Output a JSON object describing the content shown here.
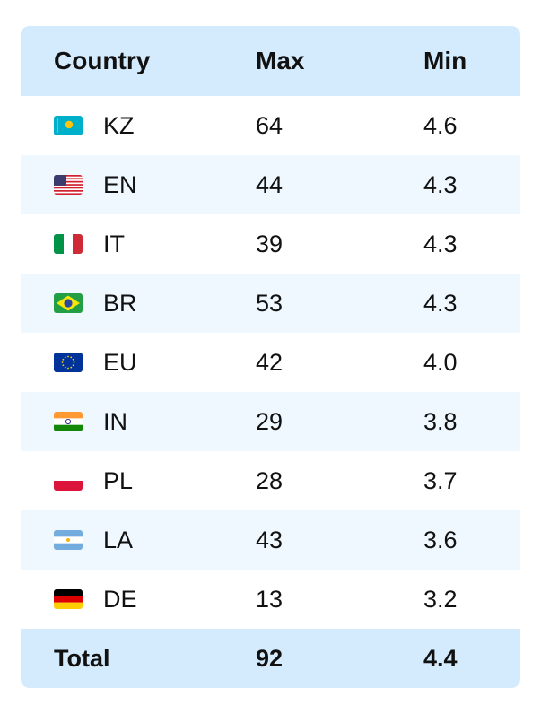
{
  "chart_data": {
    "type": "table",
    "columns": [
      "Country",
      "Max",
      "Min"
    ],
    "rows": [
      {
        "country": "KZ",
        "flag": "kazakhstan-flag-icon",
        "max": "64",
        "min": "4.6"
      },
      {
        "country": "EN",
        "flag": "usa-flag-icon",
        "max": "44",
        "min": "4.3"
      },
      {
        "country": "IT",
        "flag": "italy-flag-icon",
        "max": "39",
        "min": "4.3"
      },
      {
        "country": "BR",
        "flag": "brazil-flag-icon",
        "max": "53",
        "min": "4.3"
      },
      {
        "country": "EU",
        "flag": "eu-flag-icon",
        "max": "42",
        "min": "4.0"
      },
      {
        "country": "IN",
        "flag": "india-flag-icon",
        "max": "29",
        "min": "3.8"
      },
      {
        "country": "PL",
        "flag": "poland-flag-icon",
        "max": "28",
        "min": "3.7"
      },
      {
        "country": "LA",
        "flag": "argentina-flag-icon",
        "max": "43",
        "min": "3.6"
      },
      {
        "country": "DE",
        "flag": "germany-flag-icon",
        "max": "13",
        "min": "3.2"
      }
    ],
    "total": {
      "label": "Total",
      "max": "92",
      "min": "4.4"
    }
  },
  "colors": {
    "header_bg": "#d4eafd",
    "alt_row_bg": "#eff8ff",
    "text": "#111111"
  }
}
